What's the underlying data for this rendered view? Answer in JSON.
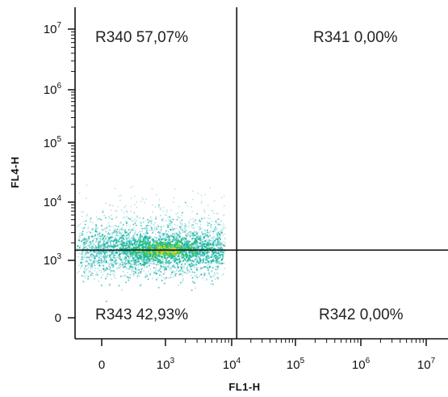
{
  "chart_data": {
    "type": "scatter",
    "subtype": "flow-cytometry-quadrant-density",
    "xlabel": "FL1-H",
    "ylabel": "FL4-H",
    "x_scale": "log",
    "y_scale": "log",
    "xlim": [
      0,
      10000000
    ],
    "ylim": [
      0,
      10000000
    ],
    "x_ticks": [
      {
        "base": "0",
        "exp": ""
      },
      {
        "base": "10",
        "exp": "3"
      },
      {
        "base": "10",
        "exp": "4"
      },
      {
        "base": "10",
        "exp": "5"
      },
      {
        "base": "10",
        "exp": "6"
      },
      {
        "base": "10",
        "exp": "7"
      }
    ],
    "y_ticks": [
      {
        "base": "0",
        "exp": ""
      },
      {
        "base": "10",
        "exp": "3"
      },
      {
        "base": "10",
        "exp": "4"
      },
      {
        "base": "10",
        "exp": "5"
      },
      {
        "base": "10",
        "exp": "6"
      },
      {
        "base": "10",
        "exp": "7"
      }
    ],
    "gates": {
      "x": 12000,
      "y": 1500
    },
    "quadrants": [
      {
        "label": "R340 57,07%",
        "position": "top-left"
      },
      {
        "label": "R341 0,00%",
        "position": "top-right"
      },
      {
        "label": "R343 42,93%",
        "position": "bottom-left"
      },
      {
        "label": "R342 0,00%",
        "position": "bottom-right"
      }
    ],
    "population": {
      "x_range": [
        0,
        8000
      ],
      "y_range": [
        100,
        20000
      ],
      "density_peak": {
        "x": 1000,
        "y": 1500
      }
    },
    "density_colors": [
      "#b8e2e6",
      "#5cc8c8",
      "#19b9a0",
      "#2fc25a",
      "#9ad21e",
      "#e6d21a"
    ]
  }
}
